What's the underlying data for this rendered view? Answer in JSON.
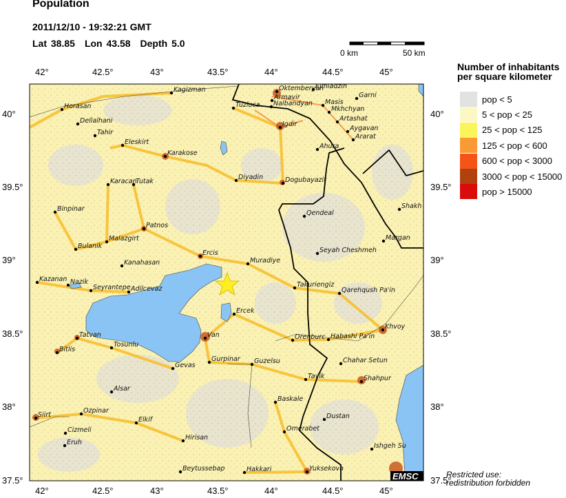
{
  "header": {
    "title": "Population",
    "datetime": "2011/12/10 - 19:32:21 GMT",
    "lat": "Lat 38.85",
    "lon": "Lon  43.58",
    "depth": "Depth  5.0"
  },
  "scale_bar": {
    "start": "0 km",
    "end": "50 km"
  },
  "legend": {
    "title_line1": "Number of inhabitants",
    "title_line2": "per square kilometer",
    "items": [
      {
        "label": "pop < 5",
        "color": "#e2e2e2"
      },
      {
        "label": "5 < pop < 25",
        "color": "#fbf8c4"
      },
      {
        "label": "25 < pop < 125",
        "color": "#fbf45a"
      },
      {
        "label": "125 < pop < 600",
        "color": "#f99a35"
      },
      {
        "label": "600 < pop < 3000",
        "color": "#f65417"
      },
      {
        "label": "3000 < pop < 15000",
        "color": "#b3400f"
      },
      {
        "label": "pop > 15000",
        "color": "#d90b0b"
      }
    ]
  },
  "axes": {
    "lon_ticks": [
      "42°",
      "42.5°",
      "43°",
      "43.5°",
      "44°",
      "44.5°",
      "45°"
    ],
    "lat_ticks": [
      "40°",
      "39.5°",
      "39°",
      "38.5°",
      "38°",
      "37.5°"
    ]
  },
  "epicenter": {
    "icon": "star-icon",
    "color": "#ffee22"
  },
  "water_color": "#8ac4f5",
  "cities": [
    "Kagizman",
    "Horasan",
    "Dellalhani",
    "Tahir",
    "Eleskirt",
    "Karakose",
    "Karacan",
    "Tutak",
    "Binpinar",
    "Patnos",
    "Malazgirt",
    "Bulanik",
    "Ercis",
    "Kanahasan",
    "Kazanan",
    "Nazik",
    "Seyrantepe",
    "Adilcevaz",
    "Oktemberyan",
    "Ejmiadzin",
    "Armavir",
    "Nalbandyan",
    "Tuzluca",
    "Masis",
    "Garni",
    "Mkhchyan",
    "Artashat",
    "Aygavan",
    "Ararat",
    "Igdir",
    "Ahura",
    "Diyadin",
    "Dogubayazit",
    "Shakh",
    "Qendeal",
    "Margan",
    "Seyah Cheshmeh",
    "Muradiye",
    "Takuriengiz",
    "Qarehqush Pa'in",
    "Ercek",
    "Khvoy",
    "Orenburc",
    "Habashi Pa'in",
    "Tatvan",
    "Bitlis",
    "Tosunlu",
    "Van",
    "Gevas",
    "Gurpinar",
    "Guzelsu",
    "Chahar Setun",
    "Tavik",
    "Shahpur",
    "Alsar",
    "Siirt",
    "Ozpinar",
    "Elkif",
    "Baskale",
    "Dustan",
    "Cizmeli",
    "Eruh",
    "Hirisan",
    "Omerabet",
    "Ishgeh Su",
    "Beytussebap",
    "Hakkari",
    "Yuksekova"
  ],
  "watermark": "EMSC",
  "footer": {
    "line1": "Restricted use:",
    "line2": "redistribution forbidden"
  }
}
